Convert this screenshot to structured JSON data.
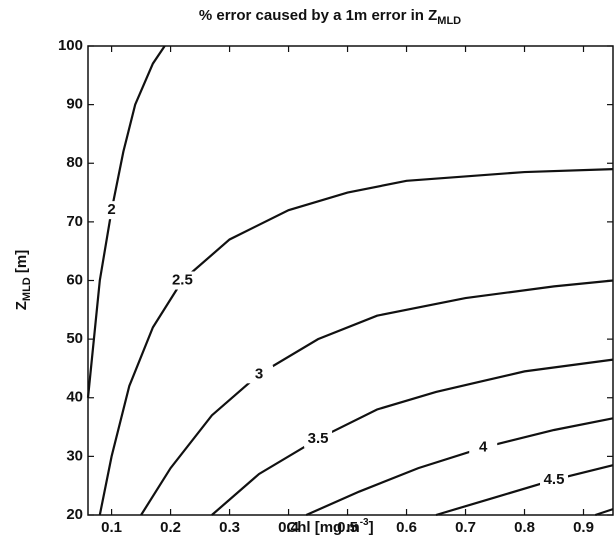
{
  "chart_data": {
    "type": "contour",
    "title": [
      "% error caused by a 1m error in Z",
      "MLD"
    ],
    "x_label": [
      "Chl [mg m",
      "-3",
      "]"
    ],
    "y_label": [
      "Z",
      "MLD",
      " [m]"
    ],
    "xlim": [
      0.06,
      0.95
    ],
    "ylim": [
      20,
      100
    ],
    "xticks": [
      0.1,
      0.2,
      0.3,
      0.4,
      0.5,
      0.6,
      0.7,
      0.8,
      0.9
    ],
    "yticks": [
      20,
      30,
      40,
      50,
      60,
      70,
      80,
      90,
      100
    ],
    "color": "#111111",
    "series": [
      {
        "name": "2",
        "x": [
          0.06,
          0.07,
          0.08,
          0.1,
          0.12,
          0.14,
          0.17,
          0.19
        ],
        "values": [
          40,
          50,
          60,
          72,
          82,
          90,
          97,
          100
        ]
      },
      {
        "name": "2.5",
        "x": [
          0.08,
          0.1,
          0.13,
          0.17,
          0.22,
          0.3,
          0.4,
          0.5,
          0.6,
          0.8,
          0.95
        ],
        "values": [
          20,
          30,
          42,
          52,
          60,
          67,
          72,
          75,
          77,
          78.5,
          79
        ]
      },
      {
        "name": "3",
        "x": [
          0.15,
          0.2,
          0.27,
          0.35,
          0.45,
          0.55,
          0.7,
          0.85,
          0.95
        ],
        "values": [
          20,
          28,
          37,
          44,
          50,
          54,
          57,
          59,
          60
        ]
      },
      {
        "name": "3.5",
        "x": [
          0.27,
          0.35,
          0.45,
          0.55,
          0.65,
          0.8,
          0.95
        ],
        "values": [
          20,
          27,
          33,
          38,
          41,
          44.5,
          46.5
        ]
      },
      {
        "name": "4",
        "x": [
          0.43,
          0.52,
          0.62,
          0.73,
          0.85,
          0.95
        ],
        "values": [
          20,
          24,
          28,
          31.5,
          34.5,
          36.5
        ]
      },
      {
        "name": "4.5",
        "x": [
          0.65,
          0.75,
          0.85,
          0.95
        ],
        "values": [
          20,
          23,
          26,
          28.5
        ]
      },
      {
        "x": [
          0.92,
          0.95
        ],
        "values": [
          20,
          21
        ]
      }
    ]
  }
}
